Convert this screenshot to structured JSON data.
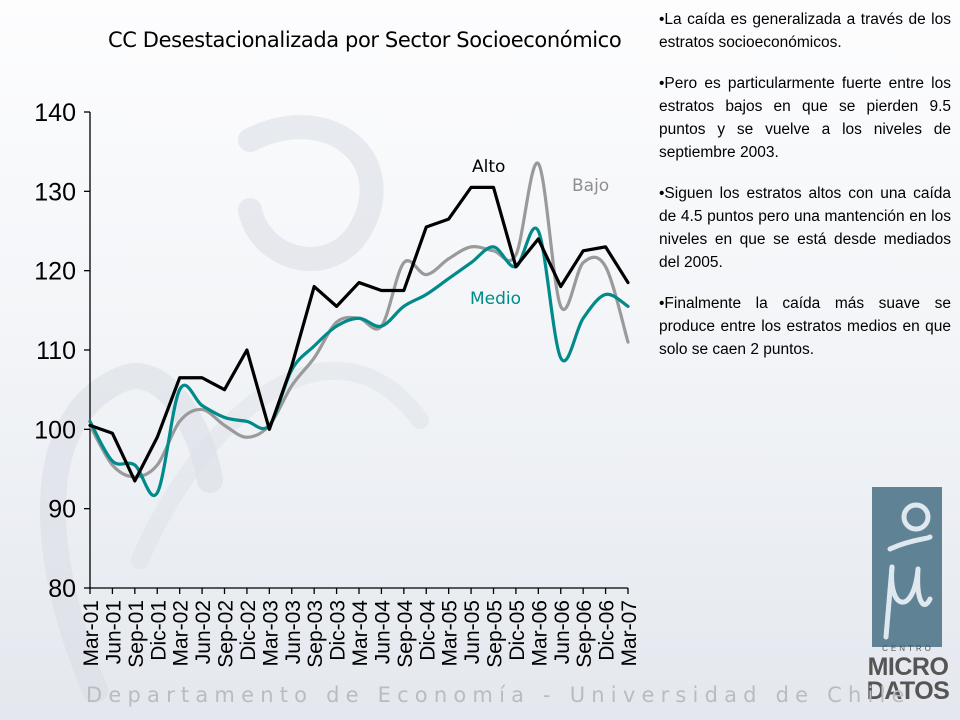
{
  "chart_data": {
    "type": "line",
    "title": "CC Desestacionalizada por Sector Socioeconómico",
    "xlabel": "",
    "ylabel": "",
    "ylim": [
      80,
      140
    ],
    "yticks": [
      80,
      90,
      100,
      110,
      120,
      130,
      140
    ],
    "grid": false,
    "legend": "inline labels",
    "categories": [
      "Mar-01",
      "Jun-01",
      "Sep-01",
      "Dic-01",
      "Mar-02",
      "Jun-02",
      "Sep-02",
      "Dic-02",
      "Mar-03",
      "Jun-03",
      "Sep-03",
      "Dic-03",
      "Mar-04",
      "Jun-04",
      "Sep-04",
      "Dic-04",
      "Mar-05",
      "Jun-05",
      "Sep-05",
      "Dic-05",
      "Mar-06",
      "Jun-06",
      "Sep-06",
      "Dic-06",
      "Mar-07"
    ],
    "series": [
      {
        "name": "Bajo",
        "color": "#9a9a9a",
        "smooth": true,
        "values": [
          100.5,
          95.5,
          94.0,
          95.5,
          101.0,
          102.5,
          100.5,
          99.0,
          100.5,
          105.5,
          109.0,
          113.5,
          114.0,
          113.0,
          121.0,
          119.5,
          121.5,
          123.0,
          122.5,
          122.0,
          133.5,
          115.5,
          121.0,
          120.5,
          111.0
        ]
      },
      {
        "name": "Medio",
        "color": "#008a8a",
        "smooth": true,
        "values": [
          101.0,
          96.0,
          95.5,
          92.0,
          105.0,
          103.0,
          101.5,
          101.0,
          100.5,
          107.5,
          110.5,
          113.0,
          114.0,
          113.0,
          115.5,
          117.0,
          119.0,
          121.0,
          123.0,
          120.5,
          125.0,
          109.0,
          114.0,
          117.0,
          115.5
        ]
      },
      {
        "name": "Alto",
        "color": "#000000",
        "smooth": false,
        "values": [
          100.5,
          99.5,
          93.5,
          99.0,
          106.5,
          106.5,
          105.0,
          110.0,
          100.0,
          108.0,
          118.0,
          115.5,
          118.5,
          117.5,
          117.5,
          125.5,
          126.5,
          130.5,
          130.5,
          120.5,
          124.0,
          118.0,
          122.5,
          123.0,
          118.5
        ]
      }
    ]
  },
  "labels": {
    "alto": "Alto",
    "bajo": "Bajo",
    "medio": "Medio"
  },
  "notes": [
    "•La caída es generalizada a través de los estratos socioeconómicos.",
    "•Pero es particularmente fuerte entre los estratos bajos en que se pierden 9.5 puntos y se vuelve a los niveles de septiembre 2003.",
    "•Siguen los estratos altos con una caída de 4.5 puntos pero una mantención en los niveles en que se está desde mediados del 2005.",
    "•Finalmente la caída más suave se produce entre los estratos medios en que solo se caen 2 puntos."
  ],
  "logo": {
    "centro": "CENTRO",
    "micro": "MICRO",
    "datos": "DATOS",
    "color": "#5f8295"
  },
  "footer": "Departamento de Economía - Universidad de Chile"
}
